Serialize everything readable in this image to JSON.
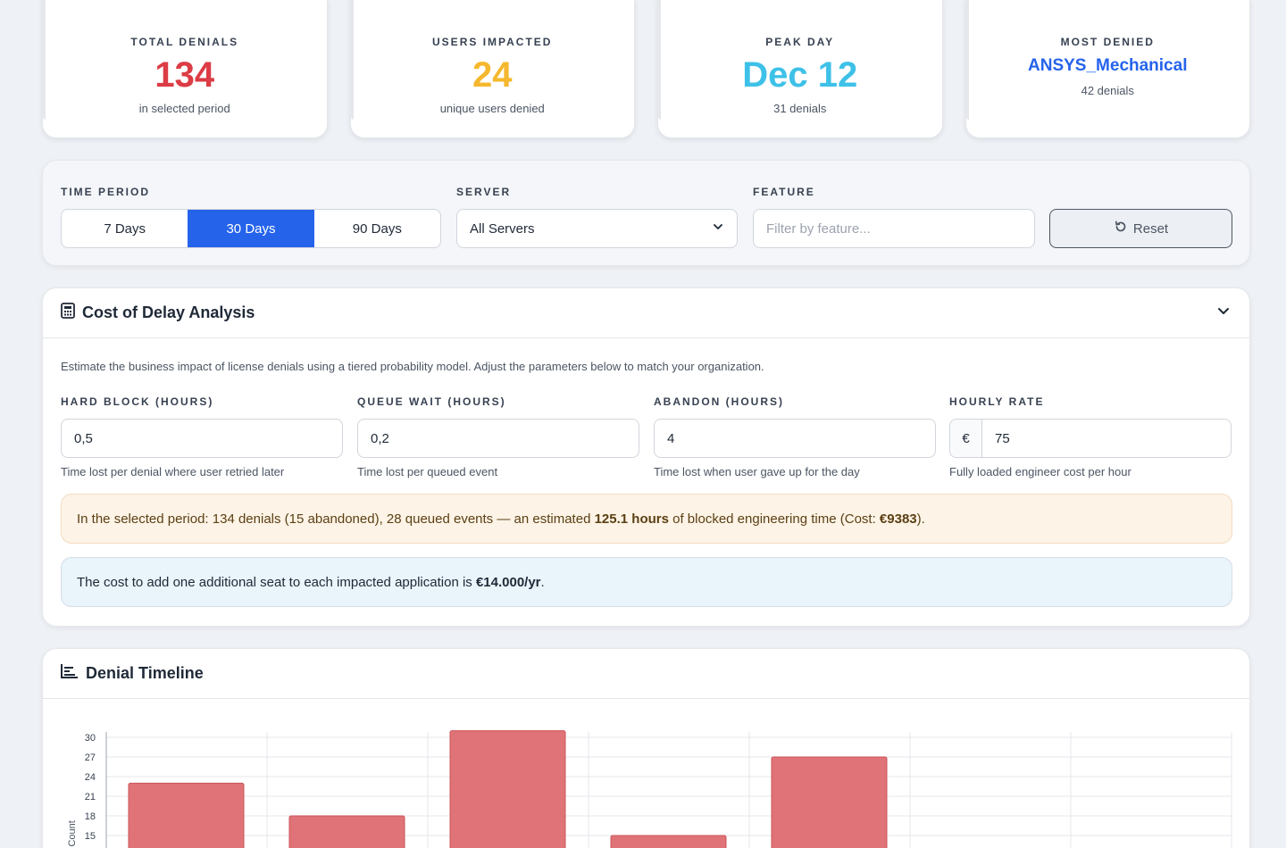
{
  "stats": [
    {
      "label": "TOTAL DENIALS",
      "value": "134",
      "sub": "in selected period",
      "color": "#dc3c45"
    },
    {
      "label": "USERS IMPACTED",
      "value": "24",
      "sub": "unique users denied",
      "color": "#f5b82e"
    },
    {
      "label": "PEAK DAY",
      "value": "Dec 12",
      "sub": "31 denials",
      "color": "#3ec1e8"
    },
    {
      "label": "MOST DENIED",
      "value": "ANSYS_Mechanical",
      "sub": "42 denials",
      "color": "#2563eb"
    }
  ],
  "filters": {
    "time_label": "TIME PERIOD",
    "periods": [
      "7 Days",
      "30 Days",
      "90 Days"
    ],
    "active_period": "30 Days",
    "server_label": "SERVER",
    "server_value": "All Servers",
    "feature_label": "FEATURE",
    "feature_placeholder": "Filter by feature...",
    "reset_label": "Reset"
  },
  "cost": {
    "title": "Cost of Delay Analysis",
    "description": "Estimate the business impact of license denials using a tiered probability model. Adjust the parameters below to match your organization.",
    "params": [
      {
        "label": "HARD BLOCK (HOURS)",
        "value": "0,5",
        "help": "Time lost per denial where user retried later"
      },
      {
        "label": "QUEUE WAIT (HOURS)",
        "value": "0,2",
        "help": "Time lost per queued event"
      },
      {
        "label": "ABANDON (HOURS)",
        "value": "4",
        "help": "Time lost when user gave up for the day"
      },
      {
        "label": "HOURLY RATE",
        "value": "75",
        "help": "Fully loaded engineer cost per hour",
        "prefix": "€"
      }
    ],
    "summary_pre": "In the selected period: 134 denials (15 abandoned), 28 queued events — an estimated ",
    "summary_hours": "125.1 hours",
    "summary_mid": " of blocked engineering time (Cost: ",
    "summary_cost": "€9383",
    "summary_post": ").",
    "seat_pre": "The cost to add one additional seat to each impacted application is ",
    "seat_cost": "€14.000/yr",
    "seat_post": "."
  },
  "timeline": {
    "title": "Denial Timeline"
  },
  "chart_data": {
    "type": "bar",
    "ylabel": "Denial Count",
    "y_ticks": [
      15,
      18,
      21,
      24,
      27,
      30
    ],
    "values": [
      23,
      18,
      31,
      15,
      27
    ],
    "bar_color": "#e07377"
  }
}
